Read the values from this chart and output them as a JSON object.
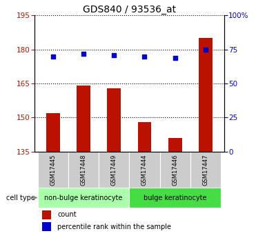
{
  "title": "GDS840 / 93536_at",
  "samples": [
    "GSM17445",
    "GSM17448",
    "GSM17449",
    "GSM17444",
    "GSM17446",
    "GSM17447"
  ],
  "counts": [
    152,
    164,
    163,
    148,
    141,
    185
  ],
  "percentiles": [
    70,
    72,
    71,
    70,
    69,
    75
  ],
  "ylim_left": [
    135,
    195
  ],
  "ylim_right": [
    0,
    100
  ],
  "yticks_left": [
    135,
    150,
    165,
    180,
    195
  ],
  "yticks_right": [
    0,
    25,
    50,
    75,
    100
  ],
  "ytick_labels_right": [
    "0",
    "25",
    "50",
    "75",
    "100%"
  ],
  "bar_color": "#bb1100",
  "scatter_color": "#0000cc",
  "groups": [
    {
      "label": "non-bulge keratinocyte",
      "indices": [
        0,
        1,
        2
      ],
      "color": "#aaffaa"
    },
    {
      "label": "bulge keratinocyte",
      "indices": [
        3,
        4,
        5
      ],
      "color": "#44dd44"
    }
  ],
  "cell_type_label": "cell type",
  "legend_count_label": "count",
  "legend_percentile_label": "percentile rank within the sample",
  "title_fontsize": 10,
  "tick_fontsize": 7.5,
  "bar_width": 0.45
}
